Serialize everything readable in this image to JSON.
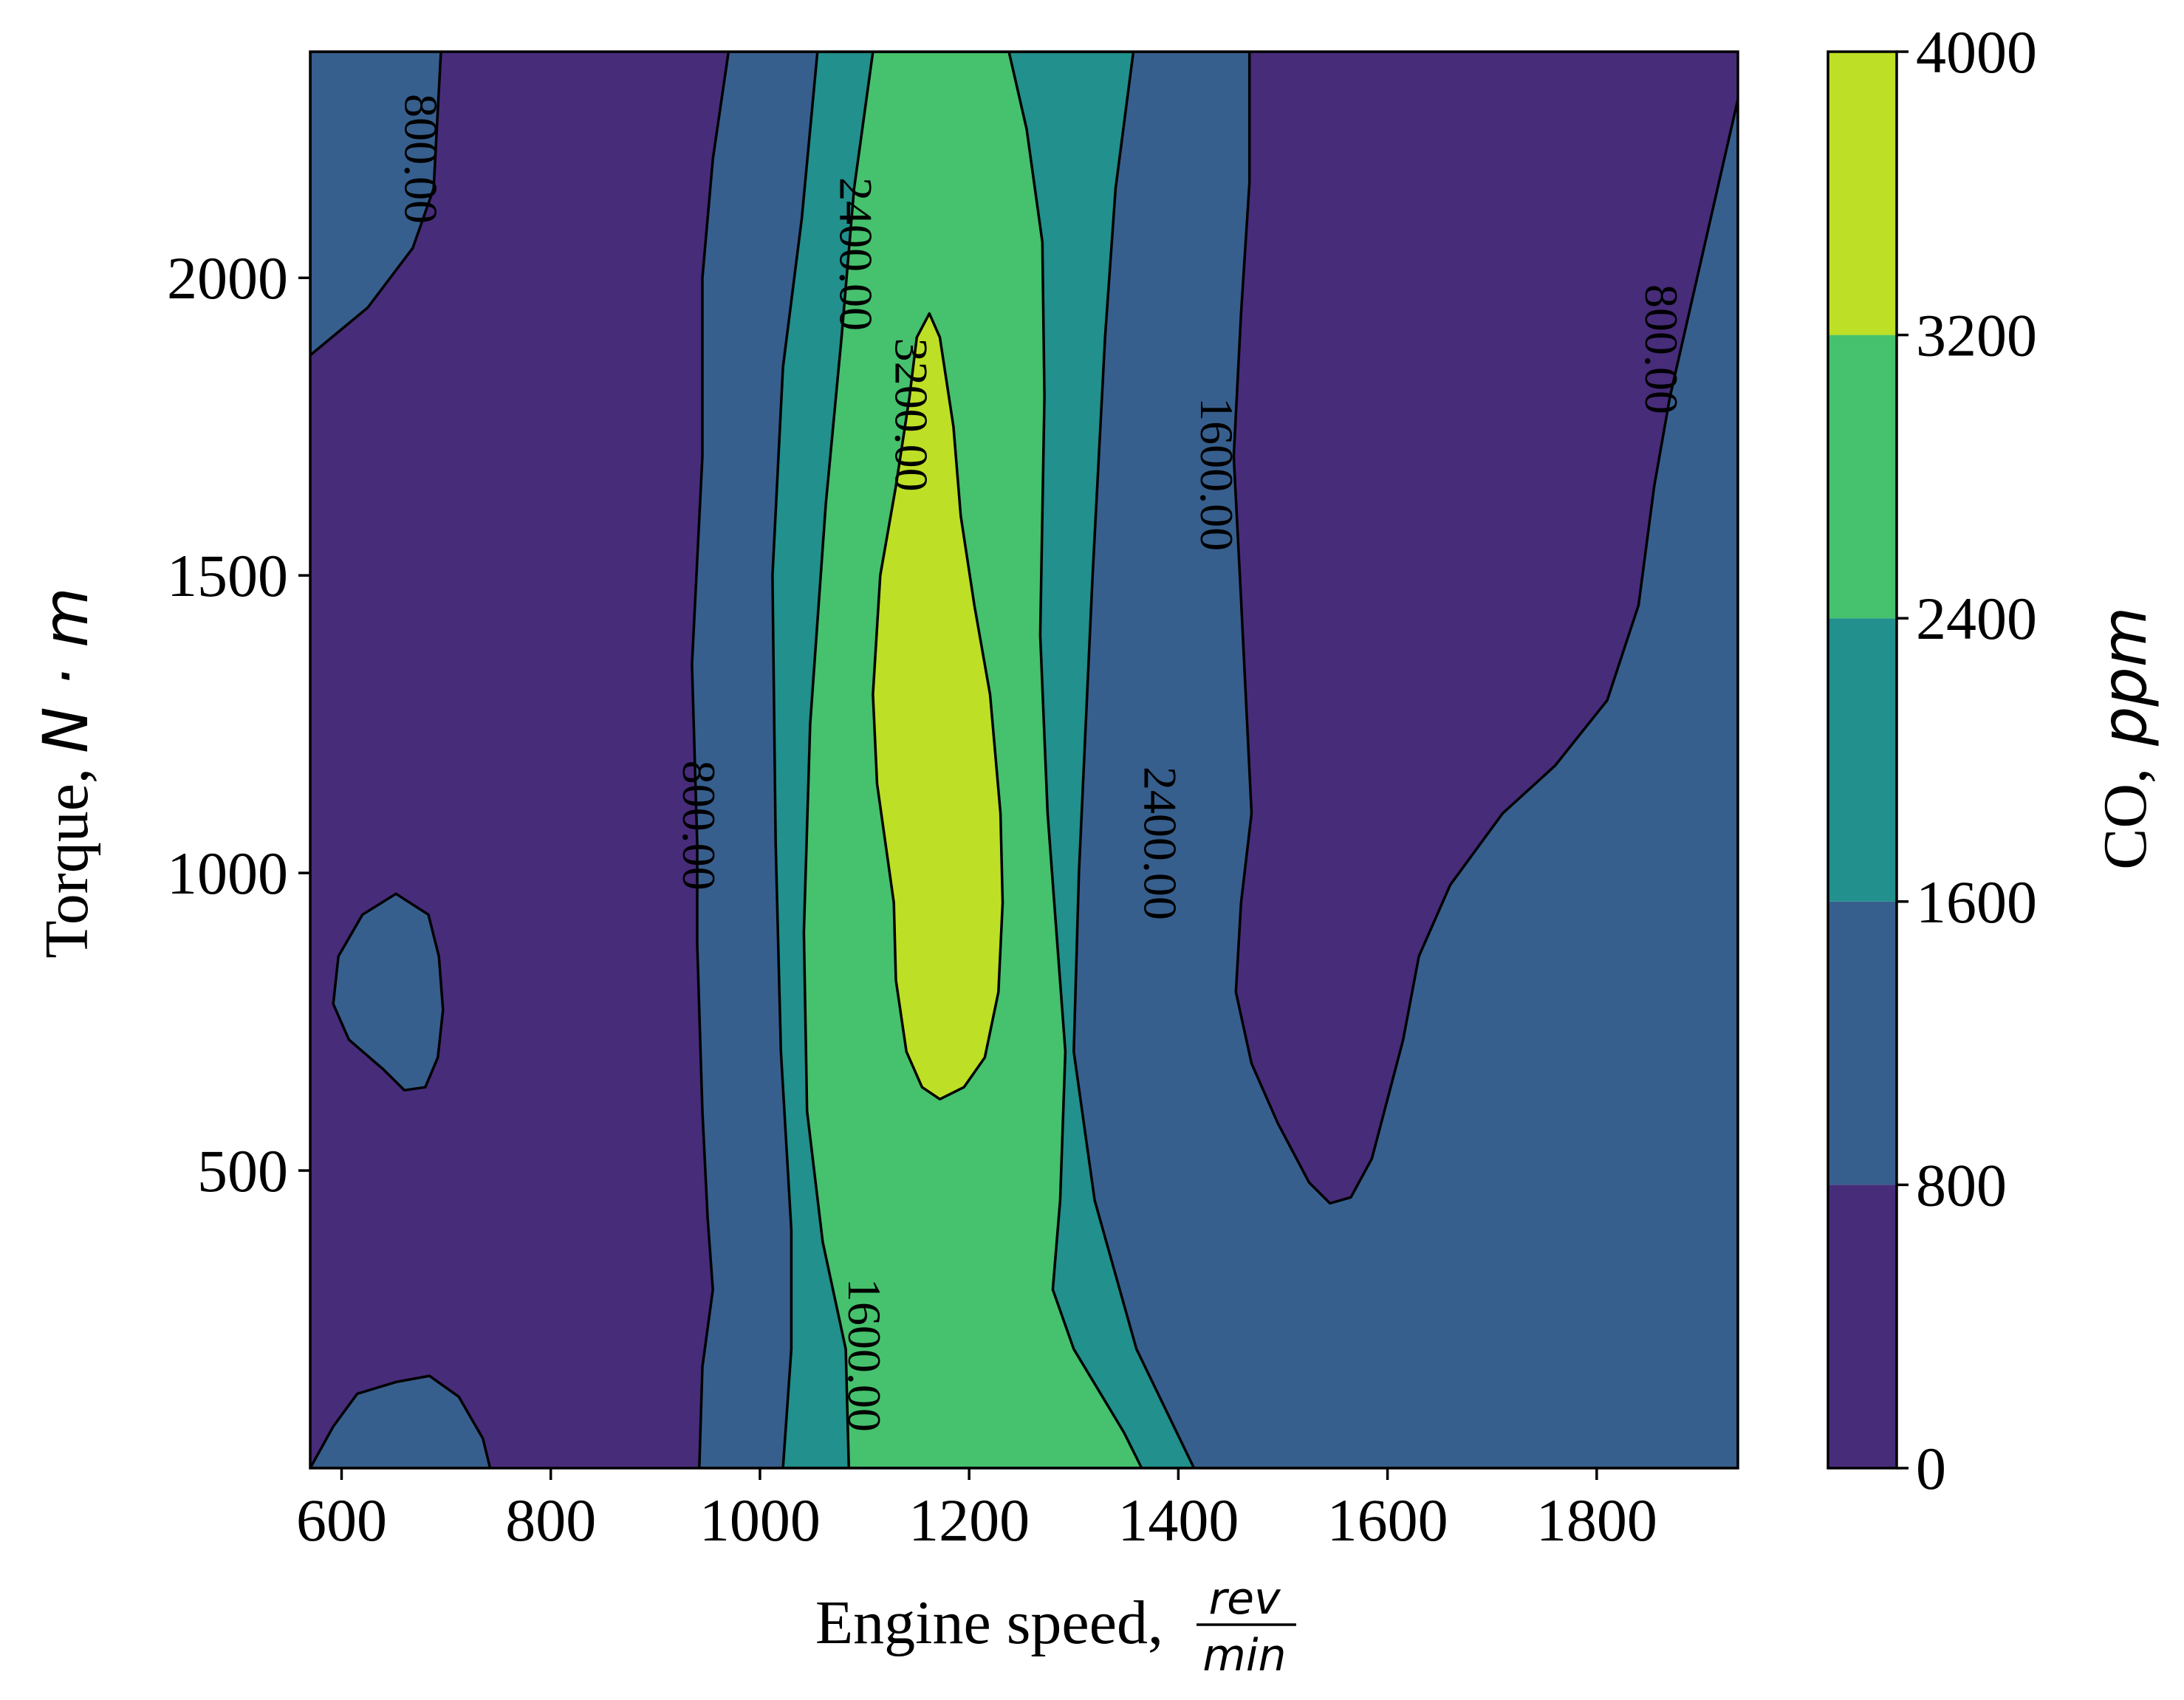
{
  "chart_data": {
    "type": "contourf",
    "title": "",
    "xlabel": {
      "prefix": "Engine speed,",
      "fraction_numerator": "rev",
      "fraction_denominator": "min"
    },
    "ylabel": {
      "prefix": "Torque,",
      "math": "N · m"
    },
    "colorbar_label": {
      "prefix": "CO,",
      "math": "ppm"
    },
    "xlim": [
      570,
      1935
    ],
    "ylim": [
      0,
      2380
    ],
    "x_ticks": [
      600,
      800,
      1000,
      1200,
      1400,
      1600,
      1800
    ],
    "y_ticks": [
      500,
      1000,
      1500,
      2000
    ],
    "levels": [
      0,
      800,
      1600,
      2400,
      3200,
      4000
    ],
    "level_colors": [
      "#472c7a",
      "#375f8d",
      "#22908c",
      "#46c16d",
      "#bddf26"
    ],
    "grid": false,
    "colorbar_position": "right",
    "contour_regions": {
      "800-1600": [
        {
          "name": "left-band",
          "polygon": [
            [
              570,
              1870
            ],
            [
              625,
              1950
            ],
            [
              668,
              2050
            ],
            [
              688,
              2150
            ],
            [
              695,
              2380
            ],
            [
              570,
              2380
            ]
          ]
        },
        {
          "name": "left-island",
          "polygon": [
            [
              652,
              965
            ],
            [
              620,
              930
            ],
            [
              597,
              860
            ],
            [
              592,
              780
            ],
            [
              607,
              720
            ],
            [
              640,
              670
            ],
            [
              660,
              635
            ],
            [
              680,
              640
            ],
            [
              692,
              690
            ],
            [
              697,
              770
            ],
            [
              693,
              860
            ],
            [
              683,
              930
            ]
          ]
        },
        {
          "name": "bottom-bump",
          "polygon": [
            [
              570,
              0
            ],
            [
              592,
              70
            ],
            [
              615,
              125
            ],
            [
              653,
              145
            ],
            [
              684,
              155
            ],
            [
              712,
              120
            ],
            [
              735,
              50
            ],
            [
              742,
              0
            ]
          ]
        },
        {
          "name": "main-right",
          "polygon": [
            [
              942,
              0
            ],
            [
              945,
              170
            ],
            [
              955,
              300
            ],
            [
              950,
              420
            ],
            [
              945,
              600
            ],
            [
              940,
              880
            ],
            [
              940,
              1050
            ],
            [
              935,
              1350
            ],
            [
              945,
              1700
            ],
            [
              945,
              2000
            ],
            [
              955,
              2200
            ],
            [
              970,
              2380
            ],
            [
              1468,
              2380
            ],
            [
              1468,
              2160
            ],
            [
              1460,
              1940
            ],
            [
              1453,
              1700
            ],
            [
              1460,
              1460
            ],
            [
              1470,
              1100
            ],
            [
              1460,
              950
            ],
            [
              1455,
              800
            ],
            [
              1470,
              680
            ],
            [
              1495,
              580
            ],
            [
              1525,
              480
            ],
            [
              1545,
              445
            ],
            [
              1565,
              455
            ],
            [
              1585,
              520
            ],
            [
              1600,
              620
            ],
            [
              1615,
              720
            ],
            [
              1630,
              860
            ],
            [
              1660,
              980
            ],
            [
              1710,
              1100
            ],
            [
              1760,
              1180
            ],
            [
              1810,
              1290
            ],
            [
              1840,
              1450
            ],
            [
              1855,
              1650
            ],
            [
              1870,
              1800
            ],
            [
              1935,
              2300
            ],
            [
              1935,
              0
            ]
          ]
        }
      ],
      "1600-2400": [
        {
          "name": "band",
          "polygon": [
            [
              1022,
              0
            ],
            [
              1030,
              200
            ],
            [
              1030,
              400
            ],
            [
              1020,
              700
            ],
            [
              1015,
              1050
            ],
            [
              1012,
              1500
            ],
            [
              1022,
              1850
            ],
            [
              1040,
              2100
            ],
            [
              1055,
              2380
            ],
            [
              1357,
              2380
            ],
            [
              1340,
              2150
            ],
            [
              1330,
              1900
            ],
            [
              1318,
              1500
            ],
            [
              1305,
              1000
            ],
            [
              1300,
              700
            ],
            [
              1320,
              450
            ],
            [
              1360,
              200
            ],
            [
              1415,
              0
            ]
          ]
        }
      ],
      "2400-3200": [
        {
          "name": "band",
          "polygon": [
            [
              1085,
              0
            ],
            [
              1082,
              200
            ],
            [
              1060,
              380
            ],
            [
              1045,
              600
            ],
            [
              1042,
              900
            ],
            [
              1048,
              1250
            ],
            [
              1063,
              1620
            ],
            [
              1078,
              1900
            ],
            [
              1090,
              2150
            ],
            [
              1108,
              2380
            ],
            [
              1238,
              2380
            ],
            [
              1255,
              2250
            ],
            [
              1270,
              2060
            ],
            [
              1272,
              1800
            ],
            [
              1268,
              1400
            ],
            [
              1275,
              1100
            ],
            [
              1292,
              700
            ],
            [
              1287,
              450
            ],
            [
              1280,
              300
            ],
            [
              1300,
              200
            ],
            [
              1348,
              60
            ],
            [
              1365,
              0
            ]
          ]
        }
      ],
      "3200-4000": [
        {
          "name": "peak",
          "polygon": [
            [
              1162,
              1940
            ],
            [
              1172,
              1900
            ],
            [
              1185,
              1750
            ],
            [
              1192,
              1600
            ],
            [
              1205,
              1450
            ],
            [
              1220,
              1300
            ],
            [
              1230,
              1100
            ],
            [
              1232,
              950
            ],
            [
              1228,
              800
            ],
            [
              1215,
              690
            ],
            [
              1195,
              640
            ],
            [
              1172,
              620
            ],
            [
              1155,
              640
            ],
            [
              1140,
              700
            ],
            [
              1130,
              820
            ],
            [
              1128,
              950
            ],
            [
              1112,
              1150
            ],
            [
              1108,
              1300
            ],
            [
              1115,
              1500
            ],
            [
              1130,
              1650
            ],
            [
              1143,
              1800
            ],
            [
              1150,
              1900
            ]
          ]
        }
      ]
    },
    "contour_line_labels": [
      {
        "text": "800.00",
        "x": 671,
        "y": 2200
      },
      {
        "text": "800.00",
        "x": 1857,
        "y": 1880
      },
      {
        "text": "800.00",
        "x": 937,
        "y": 1080
      },
      {
        "text": "1600.00",
        "x": 1432,
        "y": 1670
      },
      {
        "text": "1600.00",
        "x": 1095,
        "y": 190
      },
      {
        "text": "2400.00",
        "x": 1087,
        "y": 2040
      },
      {
        "text": "2400.00",
        "x": 1378,
        "y": 1050
      },
      {
        "text": "3200.00",
        "x": 1140,
        "y": 1770
      }
    ]
  }
}
